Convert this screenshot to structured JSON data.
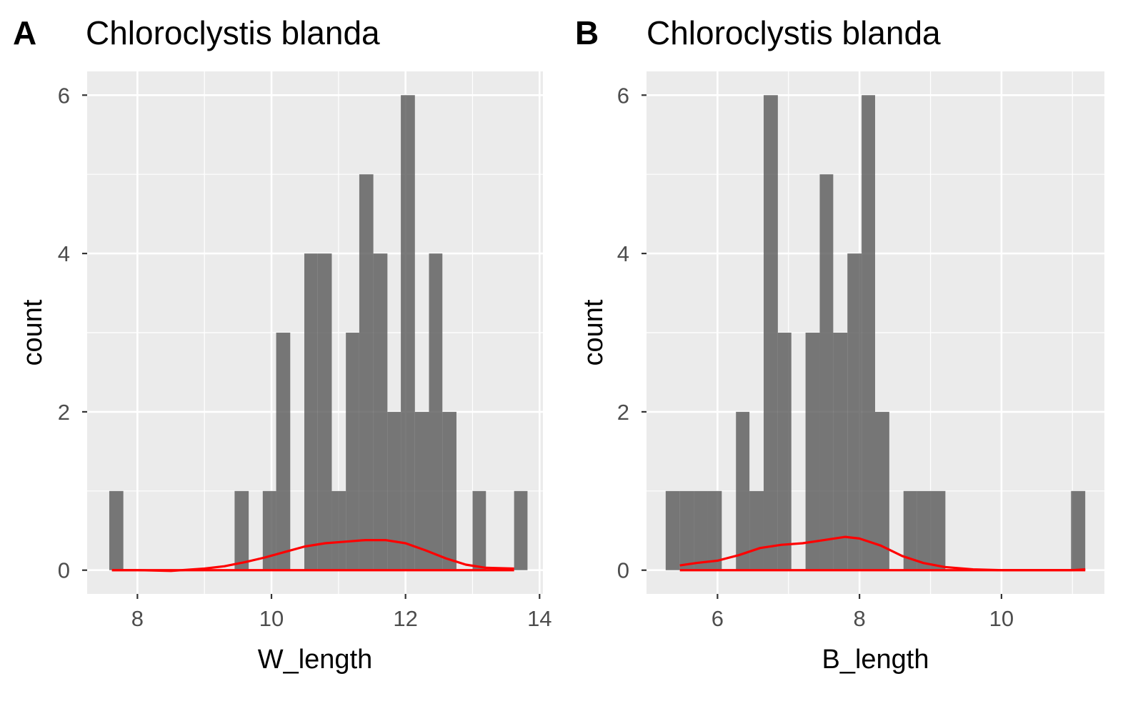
{
  "chart_data": [
    {
      "type": "bar",
      "panel": "A",
      "title": "Chloroclystis blanda",
      "xlabel": "W_length",
      "ylabel": "count",
      "xlim": [
        7.25,
        14.05
      ],
      "ylim": [
        -0.3,
        6.3
      ],
      "xticks": [
        8,
        10,
        12,
        14
      ],
      "yticks": [
        0,
        2,
        4,
        6
      ],
      "xminor": [
        9,
        11,
        13
      ],
      "yminor": [
        1,
        3,
        5
      ],
      "grid": true,
      "bar_color": "#595959",
      "density_color": "#ff0000",
      "bins": [
        {
          "x0": 7.58,
          "x1": 7.79,
          "count": 1
        },
        {
          "x0": 9.45,
          "x1": 9.66,
          "count": 1
        },
        {
          "x0": 9.87,
          "x1": 10.07,
          "count": 1
        },
        {
          "x0": 10.07,
          "x1": 10.28,
          "count": 3
        },
        {
          "x0": 10.49,
          "x1": 10.69,
          "count": 4
        },
        {
          "x0": 10.69,
          "x1": 10.9,
          "count": 4
        },
        {
          "x0": 10.9,
          "x1": 11.11,
          "count": 1
        },
        {
          "x0": 11.11,
          "x1": 11.31,
          "count": 3
        },
        {
          "x0": 11.31,
          "x1": 11.52,
          "count": 5
        },
        {
          "x0": 11.52,
          "x1": 11.73,
          "count": 4
        },
        {
          "x0": 11.73,
          "x1": 11.93,
          "count": 2
        },
        {
          "x0": 11.93,
          "x1": 12.14,
          "count": 6
        },
        {
          "x0": 12.14,
          "x1": 12.35,
          "count": 2
        },
        {
          "x0": 12.35,
          "x1": 12.55,
          "count": 4
        },
        {
          "x0": 12.55,
          "x1": 12.76,
          "count": 2
        },
        {
          "x0": 13.0,
          "x1": 13.2,
          "count": 1
        },
        {
          "x0": 13.62,
          "x1": 13.82,
          "count": 1
        }
      ],
      "density": {
        "x": [
          7.62,
          8.0,
          8.5,
          9.0,
          9.3,
          9.6,
          9.9,
          10.2,
          10.5,
          10.8,
          11.1,
          11.4,
          11.7,
          12.0,
          12.3,
          12.6,
          12.9,
          13.2,
          13.62
        ],
        "y": [
          0.0,
          0.0,
          -0.01,
          0.02,
          0.05,
          0.1,
          0.16,
          0.23,
          0.3,
          0.34,
          0.36,
          0.38,
          0.38,
          0.34,
          0.25,
          0.15,
          0.07,
          0.03,
          0.02
        ]
      }
    },
    {
      "type": "bar",
      "panel": "B",
      "title": "Chloroclystis blanda",
      "xlabel": "B_length",
      "ylabel": "count",
      "xlim": [
        5.0,
        11.45
      ],
      "ylim": [
        -0.3,
        6.3
      ],
      "xticks": [
        6,
        8,
        10
      ],
      "yticks": [
        0,
        2,
        4,
        6
      ],
      "xminor": [
        5,
        7,
        9,
        11
      ],
      "yminor": [
        1,
        3,
        5
      ],
      "grid": true,
      "bar_color": "#595959",
      "density_color": "#ff0000",
      "bins": [
        {
          "x0": 5.27,
          "x1": 5.47,
          "count": 1
        },
        {
          "x0": 5.47,
          "x1": 5.67,
          "count": 1
        },
        {
          "x0": 5.67,
          "x1": 5.86,
          "count": 1
        },
        {
          "x0": 5.86,
          "x1": 6.06,
          "count": 1
        },
        {
          "x0": 6.26,
          "x1": 6.45,
          "count": 2
        },
        {
          "x0": 6.45,
          "x1": 6.65,
          "count": 1
        },
        {
          "x0": 6.65,
          "x1": 6.85,
          "count": 6
        },
        {
          "x0": 6.85,
          "x1": 7.04,
          "count": 3
        },
        {
          "x0": 7.24,
          "x1": 7.44,
          "count": 3
        },
        {
          "x0": 7.44,
          "x1": 7.63,
          "count": 5
        },
        {
          "x0": 7.63,
          "x1": 7.83,
          "count": 3
        },
        {
          "x0": 7.83,
          "x1": 8.03,
          "count": 4
        },
        {
          "x0": 8.03,
          "x1": 8.22,
          "count": 6
        },
        {
          "x0": 8.22,
          "x1": 8.42,
          "count": 2
        },
        {
          "x0": 8.62,
          "x1": 8.81,
          "count": 1
        },
        {
          "x0": 8.81,
          "x1": 9.01,
          "count": 1
        },
        {
          "x0": 9.01,
          "x1": 9.21,
          "count": 1
        },
        {
          "x0": 10.98,
          "x1": 11.18,
          "count": 1
        }
      ],
      "density": {
        "x": [
          5.47,
          5.7,
          6.0,
          6.3,
          6.6,
          6.9,
          7.2,
          7.5,
          7.8,
          8.0,
          8.3,
          8.6,
          8.9,
          9.2,
          9.6,
          10.0,
          10.5,
          11.0,
          11.18
        ],
        "y": [
          0.06,
          0.09,
          0.12,
          0.19,
          0.28,
          0.32,
          0.34,
          0.38,
          0.42,
          0.4,
          0.31,
          0.18,
          0.09,
          0.04,
          0.01,
          0.0,
          0.0,
          0.0,
          0.01
        ]
      }
    }
  ]
}
